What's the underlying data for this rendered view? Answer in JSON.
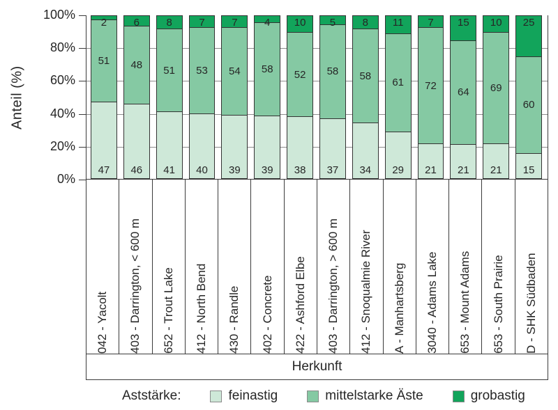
{
  "chart_data": {
    "type": "bar",
    "stacked": true,
    "orientation": "vertical",
    "ylabel": "Anteil (%)",
    "xlabel": "Herkunft",
    "ylim": [
      0,
      100
    ],
    "yticks": [
      0,
      20,
      40,
      60,
      80,
      100
    ],
    "ytick_labels": [
      "0%",
      "20%",
      "40%",
      "60%",
      "80%",
      "100%"
    ],
    "gridlines": [
      20,
      40,
      60,
      80
    ],
    "legend_title": "Aststärke:",
    "legend_position": "bottom",
    "categories": [
      "042 - Yacolt",
      "403 - Darrington, < 600 m",
      "652 - Trout Lake",
      "412 - North Bend",
      "430 - Randle",
      "402 - Concrete",
      "422 - Ashford Elbe",
      "403 - Darrington, > 600 m",
      "412 - Snoqualmie River",
      "A - Manhartsberg",
      "3040 - Adams Lake",
      "653 - Mount Adams",
      "653 - South Prairie",
      "D - SHK Südbaden"
    ],
    "series": [
      {
        "name": "feinastig",
        "color": "#cee8d8",
        "values": [
          47,
          46,
          41,
          40,
          39,
          39,
          38,
          37,
          34,
          29,
          21,
          21,
          21,
          15
        ]
      },
      {
        "name": "mittelstarke Äste",
        "color": "#85c9a3",
        "values": [
          51,
          48,
          51,
          53,
          54,
          58,
          52,
          58,
          58,
          61,
          72,
          64,
          69,
          60
        ]
      },
      {
        "name": "grobastig",
        "color": "#12a45b",
        "values": [
          2,
          6,
          8,
          7,
          7,
          4,
          10,
          5,
          8,
          11,
          7,
          15,
          10,
          25
        ]
      }
    ]
  },
  "colors": {
    "frame": "#3a3a3a",
    "bar_border": "#333333",
    "gridline": "#8c8c8c",
    "text": "#262626",
    "background": "#ffffff"
  }
}
